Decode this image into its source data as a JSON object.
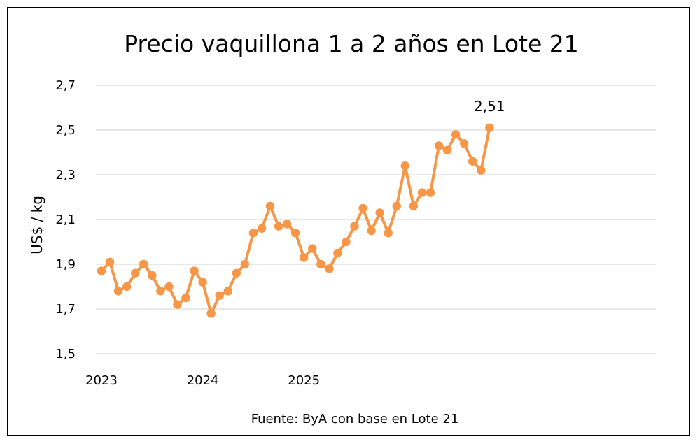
{
  "chart_data": {
    "type": "line",
    "title": "Precio vaquillona 1 a 2 años en Lote 21",
    "ylabel": "US$ / kg",
    "xlabel": "",
    "source": "Fuente: ByA con base en Lote 21",
    "ylim": [
      1.5,
      2.7
    ],
    "yticks": [
      "1,5",
      "1,7",
      "1,9",
      "2,1",
      "2,3",
      "2,5",
      "2,7"
    ],
    "xticks": [
      "2023",
      "2024",
      "2025"
    ],
    "grid": true,
    "series_color": "#F79646",
    "gridline_color": "#D9D9D9",
    "end_label": "2,51",
    "series": [
      {
        "values": [
          1.87,
          1.91,
          1.78,
          1.8,
          1.86,
          1.9,
          1.85,
          1.78,
          1.8,
          1.72,
          1.75,
          1.87,
          1.82,
          1.68,
          1.76,
          1.78,
          1.86,
          1.9,
          2.04,
          2.06,
          2.16,
          2.07,
          2.08,
          2.04,
          1.93,
          1.97,
          1.9,
          1.88,
          1.95,
          2.0,
          2.07,
          2.15,
          2.05,
          2.13,
          2.04,
          2.16,
          2.34,
          2.16,
          2.22,
          2.22,
          2.43,
          2.41,
          2.48,
          2.44,
          2.36,
          2.32,
          2.51
        ]
      }
    ]
  }
}
